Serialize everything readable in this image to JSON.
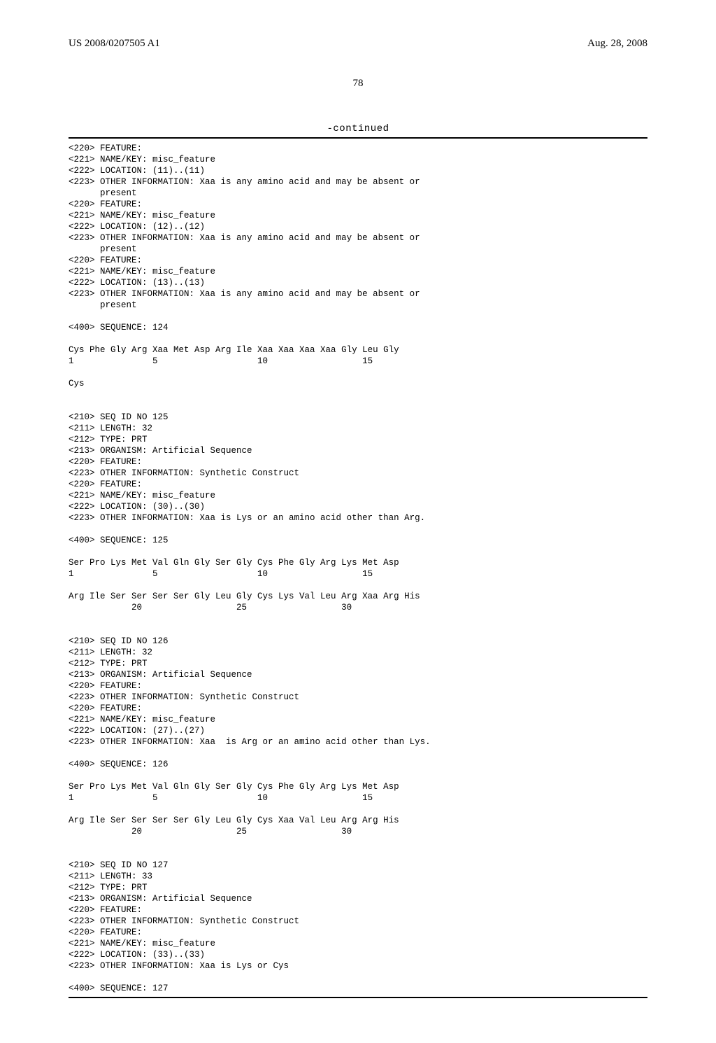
{
  "header": {
    "left": "US 2008/0207505 A1",
    "right": "Aug. 28, 2008",
    "page_number": "78"
  },
  "continued_label": "-continued",
  "listing": "<220> FEATURE:\n<221> NAME/KEY: misc_feature\n<222> LOCATION: (11)..(11)\n<223> OTHER INFORMATION: Xaa is any amino acid and may be absent or\n      present\n<220> FEATURE:\n<221> NAME/KEY: misc_feature\n<222> LOCATION: (12)..(12)\n<223> OTHER INFORMATION: Xaa is any amino acid and may be absent or\n      present\n<220> FEATURE:\n<221> NAME/KEY: misc_feature\n<222> LOCATION: (13)..(13)\n<223> OTHER INFORMATION: Xaa is any amino acid and may be absent or\n      present\n\n<400> SEQUENCE: 124\n\nCys Phe Gly Arg Xaa Met Asp Arg Ile Xaa Xaa Xaa Xaa Gly Leu Gly\n1               5                   10                  15\n\nCys\n\n\n<210> SEQ ID NO 125\n<211> LENGTH: 32\n<212> TYPE: PRT\n<213> ORGANISM: Artificial Sequence\n<220> FEATURE:\n<223> OTHER INFORMATION: Synthetic Construct\n<220> FEATURE:\n<221> NAME/KEY: misc_feature\n<222> LOCATION: (30)..(30)\n<223> OTHER INFORMATION: Xaa is Lys or an amino acid other than Arg.\n\n<400> SEQUENCE: 125\n\nSer Pro Lys Met Val Gln Gly Ser Gly Cys Phe Gly Arg Lys Met Asp\n1               5                   10                  15\n\nArg Ile Ser Ser Ser Ser Gly Leu Gly Cys Lys Val Leu Arg Xaa Arg His\n            20                  25                  30\n\n\n<210> SEQ ID NO 126\n<211> LENGTH: 32\n<212> TYPE: PRT\n<213> ORGANISM: Artificial Sequence\n<220> FEATURE:\n<223> OTHER INFORMATION: Synthetic Construct\n<220> FEATURE:\n<221> NAME/KEY: misc_feature\n<222> LOCATION: (27)..(27)\n<223> OTHER INFORMATION: Xaa  is Arg or an amino acid other than Lys.\n\n<400> SEQUENCE: 126\n\nSer Pro Lys Met Val Gln Gly Ser Gly Cys Phe Gly Arg Lys Met Asp\n1               5                   10                  15\n\nArg Ile Ser Ser Ser Ser Gly Leu Gly Cys Xaa Val Leu Arg Arg His\n            20                  25                  30\n\n\n<210> SEQ ID NO 127\n<211> LENGTH: 33\n<212> TYPE: PRT\n<213> ORGANISM: Artificial Sequence\n<220> FEATURE:\n<223> OTHER INFORMATION: Synthetic Construct\n<220> FEATURE:\n<221> NAME/KEY: misc_feature\n<222> LOCATION: (33)..(33)\n<223> OTHER INFORMATION: Xaa is Lys or Cys\n\n<400> SEQUENCE: 127"
}
